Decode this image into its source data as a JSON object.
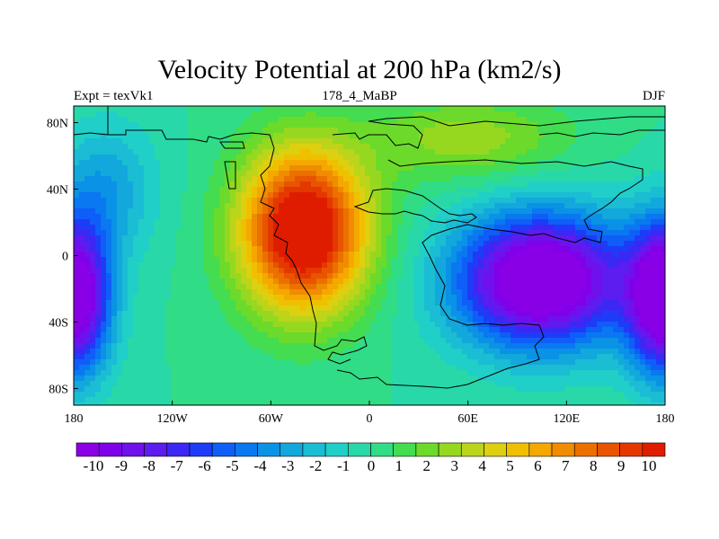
{
  "title": "Velocity Potential at 200 hPa (km2/s)",
  "subtitle_left": "Expt = texVk1",
  "subtitle_center": "178_4_MaBP",
  "subtitle_right": "DJF",
  "chart_data": {
    "type": "heatmap",
    "variable": "Velocity Potential at 200 hPa",
    "units": "km2/s",
    "xlim": [
      -180,
      180
    ],
    "ylim": [
      -90,
      90
    ],
    "x_ticks": [
      {
        "value": -180,
        "label": "180"
      },
      {
        "value": -120,
        "label": "120W"
      },
      {
        "value": -60,
        "label": "60W"
      },
      {
        "value": 0,
        "label": "0"
      },
      {
        "value": 60,
        "label": "60E"
      },
      {
        "value": 120,
        "label": "120E"
      },
      {
        "value": 180,
        "label": "180"
      }
    ],
    "y_ticks": [
      {
        "value": 80,
        "label": "80N"
      },
      {
        "value": 40,
        "label": "40N"
      },
      {
        "value": 0,
        "label": "0"
      },
      {
        "value": -40,
        "label": "40S"
      },
      {
        "value": -80,
        "label": "80S"
      }
    ],
    "colorbar": {
      "min": -10.5,
      "max": 10.5,
      "labels": [
        "-10",
        "-9",
        "-8",
        "-7",
        "-6",
        "-5",
        "-4",
        "-3",
        "-2",
        "-1",
        "0",
        "1",
        "2",
        "3",
        "4",
        "5",
        "6",
        "7",
        "8",
        "9",
        "10"
      ],
      "colors": [
        "#8a00e6",
        "#7f00e9",
        "#7010ec",
        "#5d1cf0",
        "#3b28f4",
        "#1e3cf7",
        "#0f5ef8",
        "#0a78f0",
        "#0a92e6",
        "#12a8dc",
        "#1abdd3",
        "#20cfc8",
        "#28d8a8",
        "#30dc86",
        "#44dc50",
        "#6cda2a",
        "#96d820",
        "#bcd41a",
        "#dcd010",
        "#f0c000",
        "#f4a800",
        "#f08c00",
        "#ec7000",
        "#e85400",
        "#e43800",
        "#e01c00"
      ]
    },
    "field_extrema": [
      {
        "name": "positive-center",
        "lon": -40,
        "lat": 15,
        "value": 10
      },
      {
        "name": "negative-center",
        "lon": 105,
        "lat": -15,
        "value": -10
      },
      {
        "name": "negative-west-edge",
        "lon": -180,
        "lat": -20,
        "value": -10
      }
    ]
  },
  "coastline_note": "paleogeography outline"
}
